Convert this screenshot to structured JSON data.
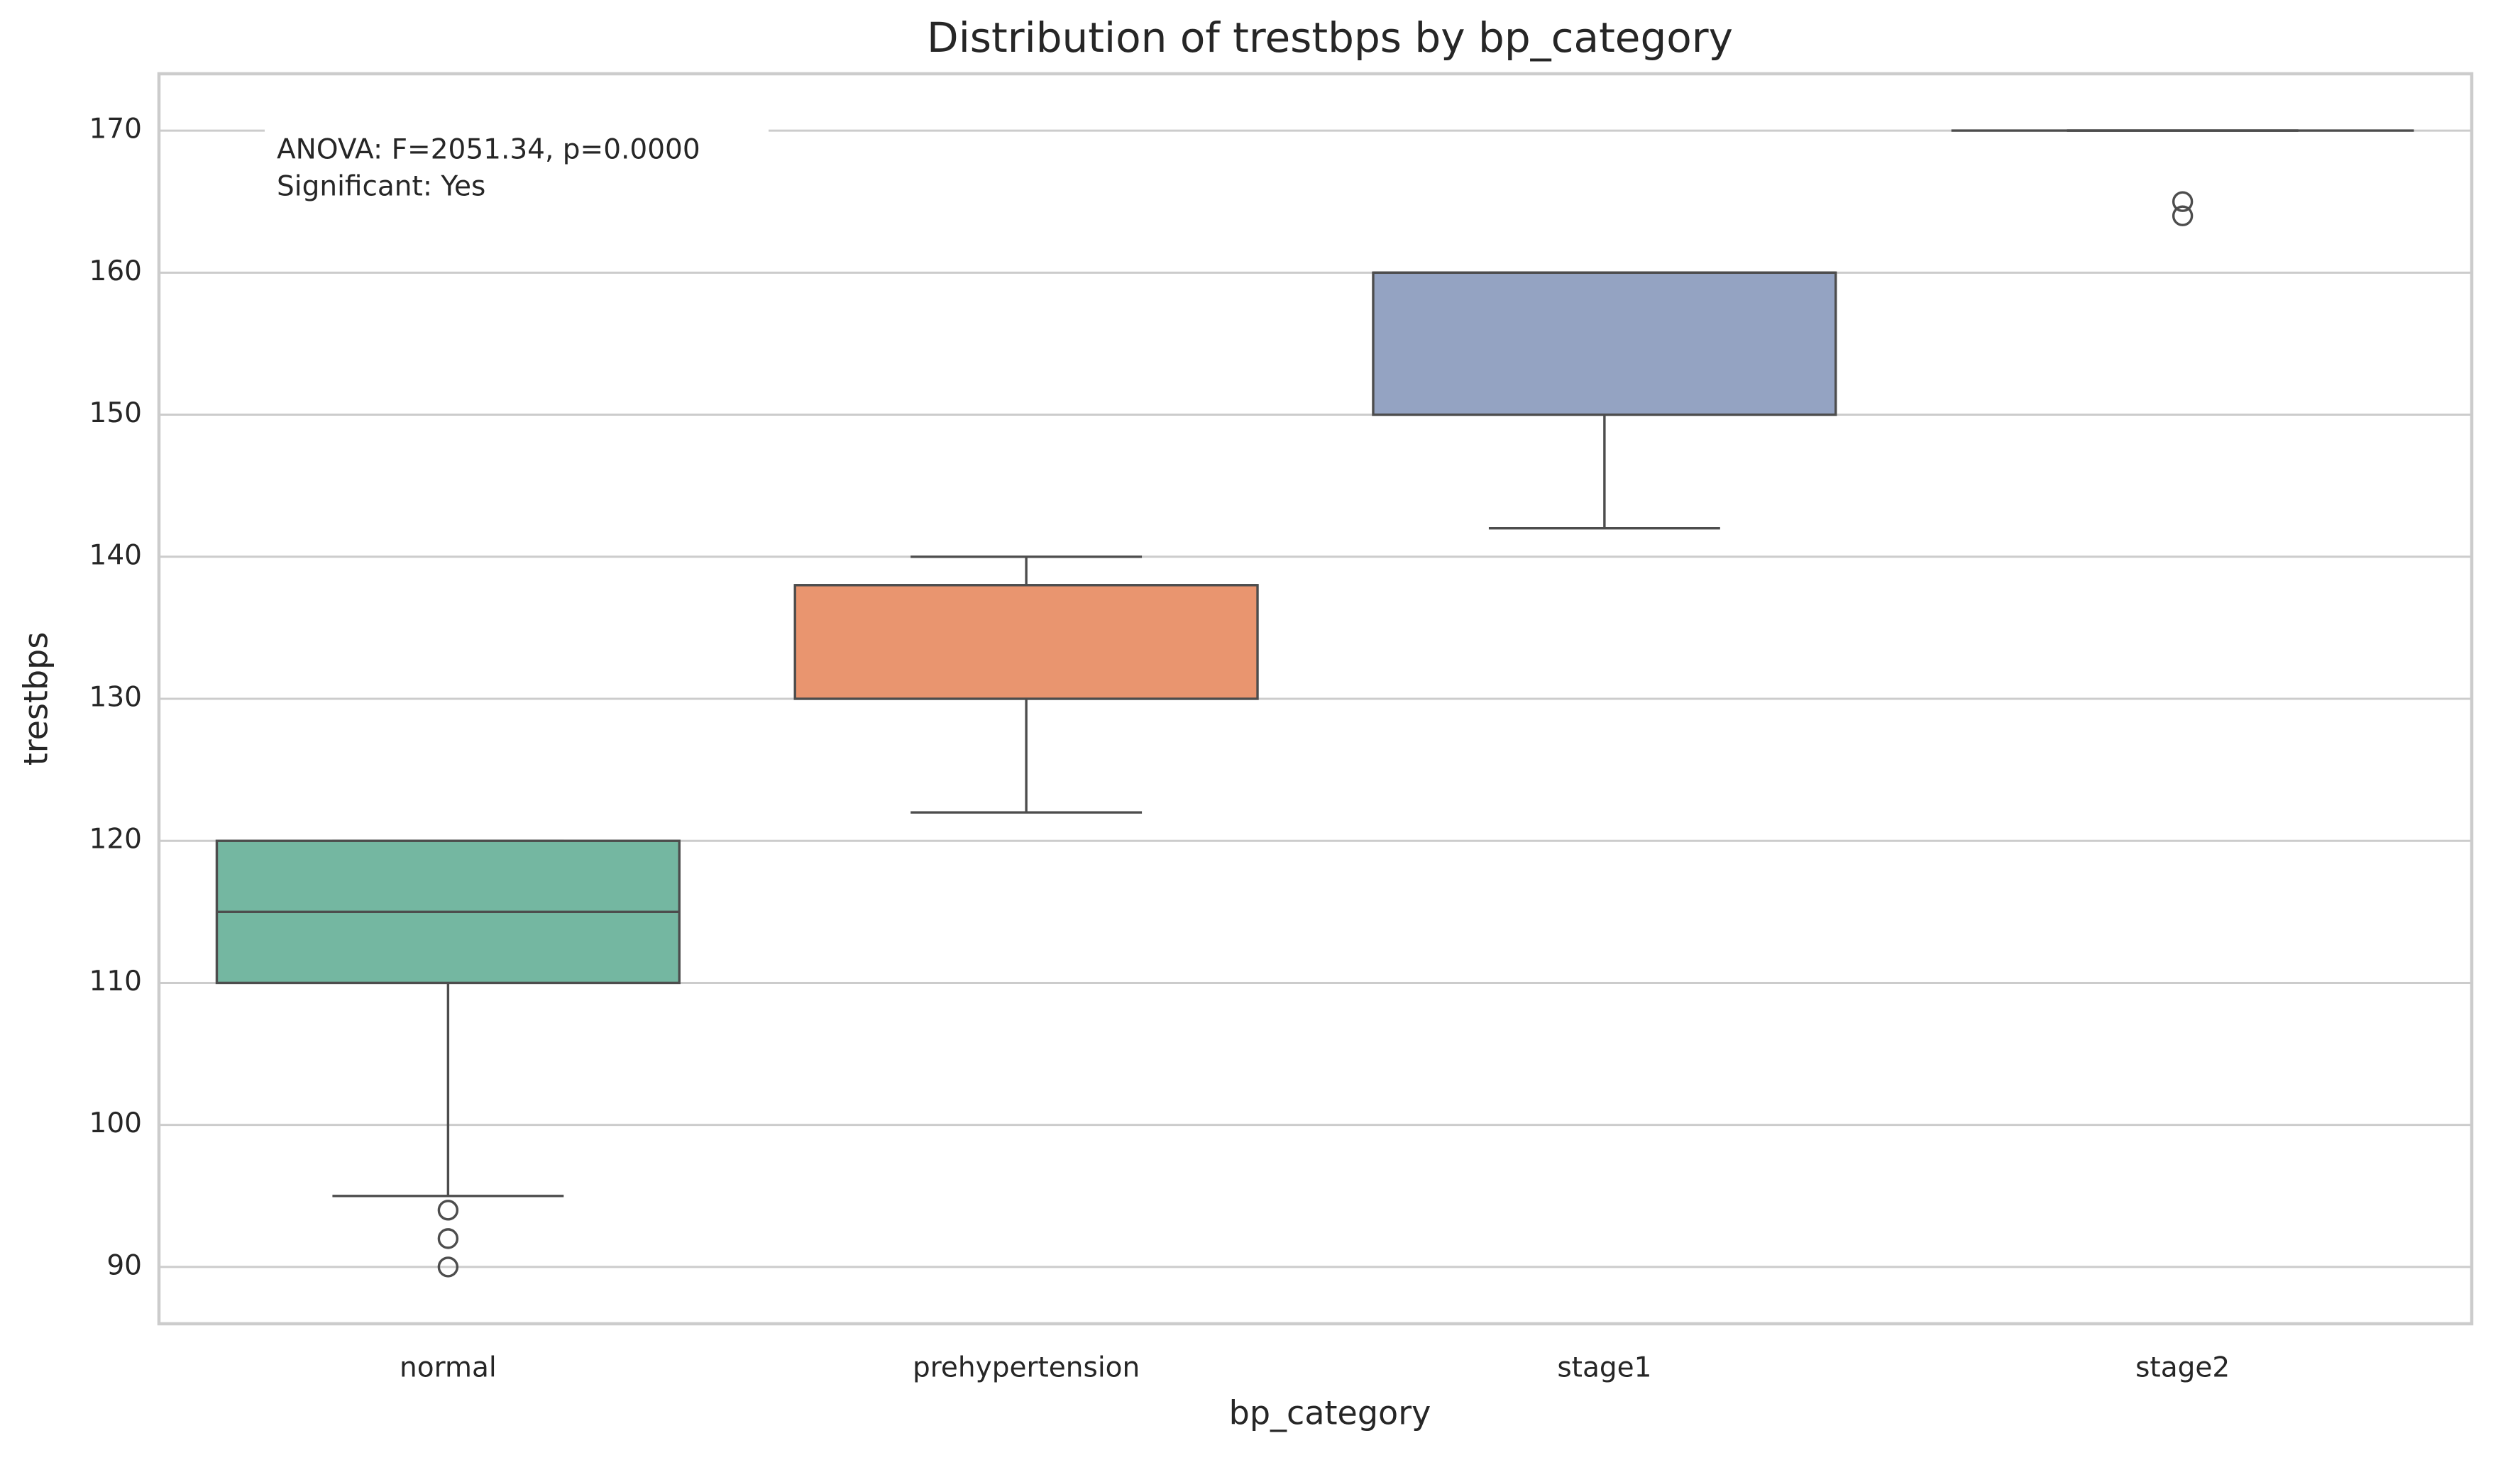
{
  "chart_data": {
    "type": "box",
    "title": "Distribution of trestbps by bp_category",
    "x_label": "bp_category",
    "y_label": "trestbps",
    "categories": [
      "normal",
      "prehypertension",
      "stage1",
      "stage2"
    ],
    "boxes": [
      {
        "whislo": 95,
        "q1": 110,
        "med": 115,
        "q3": 120,
        "whishi": 120,
        "fliers": [
          94,
          92,
          90
        ],
        "color": "#74b7a1"
      },
      {
        "whislo": 122,
        "q1": 130,
        "med": 138,
        "q3": 138,
        "whishi": 140,
        "fliers": [],
        "color": "#e9956f"
      },
      {
        "whislo": 142,
        "q1": 150,
        "med": 160,
        "q3": 160,
        "whishi": 160,
        "fliers": [],
        "color": "#94a3c2"
      },
      {
        "whislo": 170,
        "q1": 170,
        "med": 170,
        "q3": 170,
        "whishi": 170,
        "fliers": [
          165,
          164
        ],
        "color": "#dd8fbf"
      }
    ],
    "annotations": [
      "ANOVA: F=2051.34, p=0.0000",
      "Significant: Yes"
    ],
    "ylim": [
      86,
      174
    ],
    "yticks": [
      90,
      100,
      110,
      120,
      130,
      140,
      150,
      160,
      170
    ],
    "grid": true
  }
}
